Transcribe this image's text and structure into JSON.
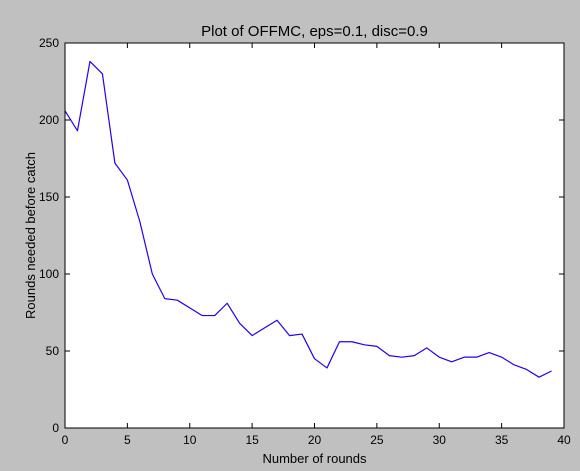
{
  "figure": {
    "background_color": "#c0c0c0",
    "plot_background_color": "#ffffff"
  },
  "chart_data": {
    "type": "line",
    "title": "Plot of OFFMC, eps=0.1, disc=0.9",
    "xlabel": "Number of rounds",
    "ylabel": "Rounds needed before catch",
    "xlim": [
      0,
      40
    ],
    "ylim": [
      0,
      250
    ],
    "x_ticks": [
      "0",
      "5",
      "10",
      "15",
      "20",
      "25",
      "30",
      "35",
      "40"
    ],
    "y_ticks": [
      "0",
      "50",
      "100",
      "150",
      "200",
      "250"
    ],
    "grid": false,
    "series": [
      {
        "color": "#2200ee",
        "x": [
          0,
          1,
          2,
          3,
          4,
          5,
          6,
          7,
          8,
          9,
          10,
          11,
          12,
          13,
          14,
          15,
          16,
          17,
          18,
          19,
          20,
          21,
          22,
          23,
          24,
          25,
          26,
          27,
          28,
          29,
          30,
          31,
          32,
          33,
          34,
          35,
          36,
          37,
          38,
          39
        ],
        "y": [
          206,
          193,
          238,
          230,
          172,
          161,
          134,
          100,
          84,
          83,
          78,
          73,
          73,
          81,
          68,
          60,
          65,
          70,
          60,
          61,
          45,
          39,
          56,
          56,
          54,
          53,
          47,
          46,
          47,
          52,
          46,
          43,
          46,
          46,
          49,
          46,
          41,
          38,
          33,
          37
        ]
      }
    ]
  }
}
